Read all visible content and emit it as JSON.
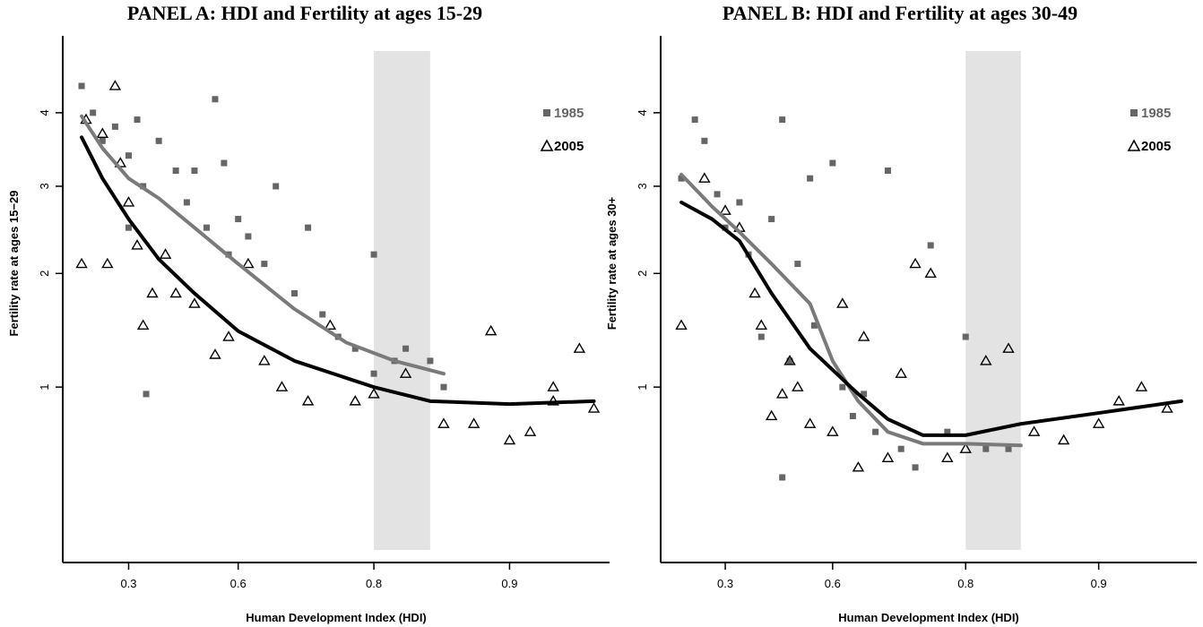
{
  "chart_data": [
    {
      "type": "scatter",
      "title": "PANEL A: HDI and Fertility at ages 15-29",
      "xlabel": "Human Development Index (HDI)",
      "ylabel": "Fertility rate at ages 15−29",
      "x_scale": "complementary-log",
      "y_scale": "sqrt",
      "xlim": [
        0.02,
        0.94
      ],
      "xticks": [
        0.3,
        0.6,
        0.8,
        0.9
      ],
      "ylim": [
        0.13,
        5.2
      ],
      "yticks": [
        1,
        2,
        3,
        4
      ],
      "band": [
        0.8,
        0.85
      ],
      "legend": "upper right",
      "series": [
        {
          "name": "1985",
          "color": "#666666",
          "marker": "square",
          "x": [
            0.11,
            0.16,
            0.2,
            0.25,
            0.3,
            0.33,
            0.35,
            0.4,
            0.45,
            0.48,
            0.5,
            0.53,
            0.55,
            0.57,
            0.58,
            0.6,
            0.62,
            0.65,
            0.67,
            0.7,
            0.72,
            0.74,
            0.76,
            0.78,
            0.8,
            0.8,
            0.82,
            0.83,
            0.85,
            0.86,
            0.36,
            0.3
          ],
          "values": [
            4.4,
            4.0,
            3.6,
            3.8,
            3.4,
            3.9,
            3.0,
            3.6,
            3.2,
            2.8,
            3.2,
            2.5,
            4.2,
            3.3,
            2.2,
            2.6,
            2.4,
            2.1,
            3.0,
            1.8,
            2.5,
            1.6,
            1.4,
            1.3,
            2.2,
            1.1,
            1.2,
            1.3,
            1.2,
            1.0,
            0.95,
            2.5
          ],
          "smooth": {
            "x": [
              0.11,
              0.2,
              0.3,
              0.4,
              0.5,
              0.6,
              0.7,
              0.77,
              0.82,
              0.86
            ],
            "values": [
              3.95,
              3.5,
              3.1,
              2.85,
              2.5,
              2.1,
              1.65,
              1.35,
              1.2,
              1.1
            ]
          }
        },
        {
          "name": "2005",
          "color": "#000000",
          "marker": "triangle",
          "x": [
            0.11,
            0.13,
            0.2,
            0.22,
            0.25,
            0.27,
            0.3,
            0.33,
            0.35,
            0.38,
            0.42,
            0.45,
            0.5,
            0.55,
            0.58,
            0.62,
            0.65,
            0.68,
            0.72,
            0.75,
            0.78,
            0.8,
            0.83,
            0.86,
            0.88,
            0.89,
            0.9,
            0.91,
            0.92,
            0.92,
            0.93,
            0.935
          ],
          "values": [
            2.1,
            3.9,
            3.7,
            2.1,
            4.4,
            3.3,
            2.8,
            2.3,
            1.5,
            1.8,
            2.2,
            1.8,
            1.7,
            1.25,
            1.4,
            2.1,
            1.2,
            1.0,
            0.9,
            1.5,
            0.9,
            0.95,
            1.1,
            0.75,
            0.75,
            1.45,
            0.65,
            0.7,
            1.0,
            0.9,
            1.3,
            0.85
          ],
          "smooth": {
            "x": [
              0.11,
              0.2,
              0.3,
              0.4,
              0.5,
              0.6,
              0.7,
              0.8,
              0.85,
              0.9,
              0.935
            ],
            "values": [
              3.65,
              3.1,
              2.6,
              2.15,
              1.8,
              1.45,
              1.2,
              1.0,
              0.9,
              0.88,
              0.9
            ]
          }
        }
      ]
    },
    {
      "type": "scatter",
      "title": "PANEL B: HDI and Fertility at ages 30-49",
      "xlabel": "Human Development Index (HDI)",
      "ylabel": "Fertility rate at ages 30+",
      "x_scale": "complementary-log",
      "y_scale": "sqrt",
      "xlim": [
        0.02,
        0.94
      ],
      "xticks": [
        0.3,
        0.6,
        0.8,
        0.9
      ],
      "ylim": [
        0.13,
        5.2
      ],
      "yticks": [
        1,
        2,
        3,
        4
      ],
      "band": [
        0.8,
        0.85
      ],
      "legend": "upper right",
      "series": [
        {
          "name": "1985",
          "color": "#666666",
          "marker": "square",
          "x": [
            0.12,
            0.18,
            0.22,
            0.27,
            0.3,
            0.35,
            0.38,
            0.42,
            0.45,
            0.48,
            0.5,
            0.52,
            0.55,
            0.56,
            0.6,
            0.62,
            0.64,
            0.66,
            0.68,
            0.7,
            0.72,
            0.74,
            0.76,
            0.78,
            0.8,
            0.82,
            0.84,
            0.48
          ],
          "values": [
            3.1,
            3.9,
            3.6,
            2.9,
            2.5,
            2.8,
            2.2,
            1.4,
            2.6,
            3.9,
            1.2,
            2.1,
            3.1,
            1.5,
            3.3,
            1.0,
            0.8,
            0.95,
            0.7,
            3.2,
            0.6,
            0.5,
            2.3,
            0.7,
            1.4,
            0.6,
            0.6,
            0.45
          ],
          "smooth": {
            "x": [
              0.12,
              0.25,
              0.35,
              0.45,
              0.55,
              0.6,
              0.65,
              0.7,
              0.75,
              0.8,
              0.85
            ],
            "values": [
              3.15,
              2.75,
              2.45,
              2.1,
              1.7,
              1.2,
              0.9,
              0.7,
              0.63,
              0.63,
              0.62
            ]
          }
        },
        {
          "name": "2005",
          "color": "#000000",
          "marker": "triangle",
          "x": [
            0.12,
            0.22,
            0.3,
            0.35,
            0.4,
            0.42,
            0.45,
            0.48,
            0.5,
            0.52,
            0.55,
            0.6,
            0.62,
            0.65,
            0.66,
            0.7,
            0.72,
            0.74,
            0.76,
            0.78,
            0.8,
            0.82,
            0.84,
            0.86,
            0.88,
            0.9,
            0.91,
            0.92,
            0.93
          ],
          "values": [
            1.5,
            3.1,
            2.7,
            2.5,
            1.8,
            1.5,
            0.8,
            0.95,
            1.2,
            1.0,
            0.75,
            0.7,
            1.7,
            0.5,
            1.4,
            0.55,
            1.1,
            2.1,
            2.0,
            0.55,
            0.6,
            1.2,
            1.3,
            0.7,
            0.65,
            0.75,
            0.9,
            1.0,
            0.85
          ],
          "smooth": {
            "x": [
              0.12,
              0.25,
              0.35,
              0.45,
              0.55,
              0.65,
              0.7,
              0.75,
              0.8,
              0.85,
              0.9,
              0.935
            ],
            "values": [
              2.8,
              2.6,
              2.35,
              1.8,
              1.3,
              0.95,
              0.78,
              0.68,
              0.68,
              0.75,
              0.82,
              0.9
            ]
          }
        }
      ]
    }
  ]
}
